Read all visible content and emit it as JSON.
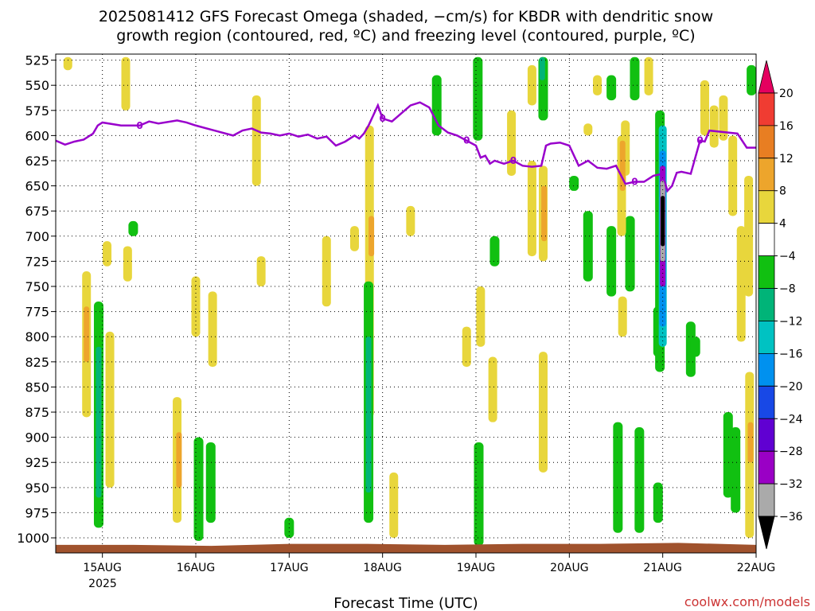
{
  "chart_data": {
    "type": "heatmap",
    "title": "2025081412 GFS Forecast Omega (shaded, −cm/s) for KBDR with dendritic snow growth region (contoured, red, ºC) and freezing level (contoured, purple, ºC)",
    "title_lines": [
      "2025081412 GFS Forecast Omega (shaded, −cm/s) for KBDR with dendritic snow",
      "growth region (contoured, red, ºC) and freezing level (contoured, purple, ºC)"
    ],
    "xlabel": "Forecast Time (UTC)",
    "credit": "coolwx.com/models",
    "x_ticks": [
      "15AUG",
      "16AUG",
      "17AUG",
      "18AUG",
      "19AUG",
      "20AUG",
      "21AUG",
      "22AUG"
    ],
    "x_tick_positions_day": [
      0,
      1,
      2,
      3,
      4,
      5,
      6,
      7
    ],
    "x_year_label": "2025",
    "xlim_day": [
      -0.5,
      7.0
    ],
    "y_ticks": [
      525,
      550,
      575,
      600,
      625,
      650,
      675,
      700,
      725,
      750,
      775,
      800,
      825,
      850,
      875,
      900,
      925,
      950,
      975,
      1000
    ],
    "y_tick_labels": [
      "525",
      "550",
      "575",
      "600",
      "625",
      "650",
      "675",
      "700",
      "725",
      "750",
      "775",
      "800",
      "825",
      "850",
      "875",
      "900",
      "925",
      "950",
      "975",
      "1000"
    ],
    "ylim_hpa": [
      519,
      1015
    ],
    "y_reversed": true,
    "grid": true,
    "colorbar": {
      "labels": [
        "20",
        "16",
        "12",
        "8",
        "4",
        "−4",
        "−8",
        "−12",
        "−16",
        "−20",
        "−24",
        "−28",
        "−32",
        "−36"
      ],
      "levels": [
        20,
        16,
        12,
        8,
        4,
        -4,
        -8,
        -12,
        -16,
        -20,
        -24,
        -28,
        -32,
        -36
      ],
      "colors": [
        "#e5005f",
        "#f03c32",
        "#e87e22",
        "#eda52c",
        "#e8d63c",
        "#ffffff",
        "#11c011",
        "#00b478",
        "#00c2c2",
        "#0091ef",
        "#1848e6",
        "#6000d2",
        "#9a00c5",
        "#aaaaaa",
        "#000000"
      ]
    },
    "colors": {
      "yellow": "#e8d63c",
      "orange": "#eda52c",
      "darkorange": "#e87e22",
      "green": "#11c011",
      "teal": "#00b478",
      "cyan": "#00c2c2",
      "blue": "#0091ef",
      "violet": "#6000d2",
      "purple": "#9a00c5",
      "gray": "#aaaaaa",
      "black": "#000000",
      "freezing_line": "#9900cc",
      "ground": "#a0522d"
    },
    "shaded_regions": [
      {
        "color": "yellow",
        "day": -0.37,
        "top": 522,
        "bottom": 535
      },
      {
        "color": "yellow",
        "day": 0.25,
        "top": 522,
        "bottom": 575
      },
      {
        "color": "yellow",
        "day": 0.27,
        "top": 710,
        "bottom": 745
      },
      {
        "color": "yellow",
        "day": -0.17,
        "top": 735,
        "bottom": 880
      },
      {
        "color": "orange",
        "day": -0.17,
        "top": 770,
        "bottom": 825
      },
      {
        "color": "yellow",
        "day": 0.08,
        "top": 795,
        "bottom": 950
      },
      {
        "color": "green",
        "day": -0.04,
        "top": 765,
        "bottom": 990
      },
      {
        "color": "teal",
        "day": -0.04,
        "top": 810,
        "bottom": 960
      },
      {
        "color": "green",
        "day": 0.33,
        "top": 685,
        "bottom": 700
      },
      {
        "color": "yellow",
        "day": 0.8,
        "top": 860,
        "bottom": 985
      },
      {
        "color": "orange",
        "day": 0.82,
        "top": 895,
        "bottom": 950
      },
      {
        "color": "green",
        "day": 1.03,
        "top": 900,
        "bottom": 1003
      },
      {
        "color": "green",
        "day": 1.16,
        "top": 905,
        "bottom": 985
      },
      {
        "color": "yellow",
        "day": 1.0,
        "top": 740,
        "bottom": 800
      },
      {
        "color": "yellow",
        "day": 1.18,
        "top": 755,
        "bottom": 830
      },
      {
        "color": "yellow",
        "day": 1.65,
        "top": 560,
        "bottom": 650
      },
      {
        "color": "yellow",
        "day": 2.7,
        "top": 690,
        "bottom": 715
      },
      {
        "color": "yellow",
        "day": 2.86,
        "top": 590,
        "bottom": 880
      },
      {
        "color": "orange",
        "day": 2.88,
        "top": 680,
        "bottom": 720
      },
      {
        "color": "green",
        "day": 2.85,
        "top": 745,
        "bottom": 985
      },
      {
        "color": "teal",
        "day": 2.85,
        "top": 800,
        "bottom": 955
      },
      {
        "color": "yellow",
        "day": 3.12,
        "top": 935,
        "bottom": 1000
      },
      {
        "color": "green",
        "day": 2.0,
        "top": 980,
        "bottom": 1000
      },
      {
        "color": "green",
        "day": 3.58,
        "top": 540,
        "bottom": 600
      },
      {
        "color": "green",
        "day": 4.02,
        "top": 522,
        "bottom": 605
      },
      {
        "color": "yellow",
        "day": 4.05,
        "top": 750,
        "bottom": 810
      },
      {
        "color": "yellow",
        "day": 3.9,
        "top": 790,
        "bottom": 830
      },
      {
        "color": "green",
        "day": 4.03,
        "top": 905,
        "bottom": 1008
      },
      {
        "color": "yellow",
        "day": 4.38,
        "top": 575,
        "bottom": 640
      },
      {
        "color": "yellow",
        "day": 4.6,
        "top": 625,
        "bottom": 720
      },
      {
        "color": "yellow",
        "day": 4.72,
        "top": 630,
        "bottom": 725
      },
      {
        "color": "orange",
        "day": 4.73,
        "top": 650,
        "bottom": 705
      },
      {
        "color": "yellow",
        "day": 4.72,
        "top": 815,
        "bottom": 935
      },
      {
        "color": "green",
        "day": 4.72,
        "top": 522,
        "bottom": 585
      },
      {
        "color": "teal",
        "day": 4.71,
        "top": 522,
        "bottom": 545
      },
      {
        "color": "yellow",
        "day": 4.6,
        "top": 530,
        "bottom": 570
      },
      {
        "color": "yellow",
        "day": 5.3,
        "top": 540,
        "bottom": 560
      },
      {
        "color": "green",
        "day": 5.05,
        "top": 640,
        "bottom": 655
      },
      {
        "color": "green",
        "day": 5.2,
        "top": 675,
        "bottom": 745
      },
      {
        "color": "green",
        "day": 5.45,
        "top": 690,
        "bottom": 760
      },
      {
        "color": "green",
        "day": 5.65,
        "top": 680,
        "bottom": 755
      },
      {
        "color": "green",
        "day": 5.7,
        "top": 522,
        "bottom": 565
      },
      {
        "color": "green",
        "day": 5.45,
        "top": 540,
        "bottom": 565
      },
      {
        "color": "yellow",
        "day": 5.6,
        "top": 585,
        "bottom": 640
      },
      {
        "color": "yellow",
        "day": 5.56,
        "top": 600,
        "bottom": 700
      },
      {
        "color": "orange",
        "day": 5.57,
        "top": 605,
        "bottom": 655
      },
      {
        "color": "yellow",
        "day": 5.57,
        "top": 760,
        "bottom": 800
      },
      {
        "color": "green",
        "day": 5.95,
        "top": 770,
        "bottom": 820
      },
      {
        "color": "yellow",
        "day": 5.85,
        "top": 522,
        "bottom": 560
      },
      {
        "color": "yellow",
        "day": 5.2,
        "top": 588,
        "bottom": 600
      },
      {
        "color": "green",
        "day": 5.97,
        "top": 575,
        "bottom": 835
      },
      {
        "color": "cyan",
        "day": 6.0,
        "top": 590,
        "bottom": 810
      },
      {
        "color": "blue",
        "day": 6.0,
        "top": 615,
        "bottom": 790
      },
      {
        "color": "purple",
        "day": 6.0,
        "top": 630,
        "bottom": 750
      },
      {
        "color": "gray",
        "day": 6.0,
        "top": 645,
        "bottom": 725
      },
      {
        "color": "black",
        "day": 6.0,
        "top": 660,
        "bottom": 710
      },
      {
        "color": "green",
        "day": 6.3,
        "top": 785,
        "bottom": 840
      },
      {
        "color": "green",
        "day": 6.35,
        "top": 800,
        "bottom": 820
      },
      {
        "color": "yellow",
        "day": 6.45,
        "top": 545,
        "bottom": 600
      },
      {
        "color": "yellow",
        "day": 6.55,
        "top": 570,
        "bottom": 612
      },
      {
        "color": "yellow",
        "day": 6.65,
        "top": 560,
        "bottom": 605
      },
      {
        "color": "green",
        "day": 6.95,
        "top": 530,
        "bottom": 560
      },
      {
        "color": "yellow",
        "day": 6.75,
        "top": 600,
        "bottom": 680
      },
      {
        "color": "yellow",
        "day": 6.84,
        "top": 690,
        "bottom": 805
      },
      {
        "color": "yellow",
        "day": 6.92,
        "top": 640,
        "bottom": 760
      },
      {
        "color": "green",
        "day": 6.7,
        "top": 875,
        "bottom": 960
      },
      {
        "color": "green",
        "day": 6.78,
        "top": 890,
        "bottom": 975
      },
      {
        "color": "yellow",
        "day": 6.93,
        "top": 835,
        "bottom": 1000
      },
      {
        "color": "orange",
        "day": 6.94,
        "top": 885,
        "bottom": 925
      },
      {
        "color": "green",
        "day": 5.52,
        "top": 885,
        "bottom": 995
      },
      {
        "color": "green",
        "day": 5.75,
        "top": 890,
        "bottom": 995
      },
      {
        "color": "green",
        "day": 5.95,
        "top": 945,
        "bottom": 985
      },
      {
        "color": "yellow",
        "day": 0.05,
        "top": 705,
        "bottom": 730
      },
      {
        "color": "yellow",
        "day": 2.4,
        "top": 700,
        "bottom": 770
      },
      {
        "color": "yellow",
        "day": 1.7,
        "top": 720,
        "bottom": 750
      },
      {
        "color": "yellow",
        "day": 3.3,
        "top": 670,
        "bottom": 700
      },
      {
        "color": "yellow",
        "day": 4.18,
        "top": 820,
        "bottom": 885
      },
      {
        "color": "green",
        "day": 4.2,
        "top": 700,
        "bottom": 730
      }
    ],
    "freezing_level": {
      "label": "0",
      "day": [
        -0.5,
        -0.4,
        -0.3,
        -0.2,
        -0.1,
        -0.05,
        0.0,
        0.2,
        0.4,
        0.5,
        0.6,
        0.8,
        0.9,
        1.0,
        1.2,
        1.4,
        1.5,
        1.6,
        1.7,
        1.8,
        1.9,
        2.0,
        2.1,
        2.2,
        2.3,
        2.4,
        2.5,
        2.6,
        2.7,
        2.75,
        2.8,
        2.85,
        2.9,
        2.95,
        3.0,
        3.1,
        3.2,
        3.3,
        3.4,
        3.5,
        3.6,
        3.7,
        3.8,
        3.9,
        4.0,
        4.05,
        4.1,
        4.15,
        4.2,
        4.3,
        4.4,
        4.5,
        4.6,
        4.7,
        4.75,
        4.8,
        4.9,
        5.0,
        5.1,
        5.2,
        5.3,
        5.4,
        5.5,
        5.6,
        5.7,
        5.8,
        5.9,
        6.0,
        6.05,
        6.1,
        6.15,
        6.2,
        6.3,
        6.4,
        6.45,
        6.5,
        6.6,
        6.7,
        6.8,
        6.9,
        7.0
      ],
      "hpa": [
        605,
        609,
        606,
        604,
        598,
        590,
        587,
        590,
        590,
        586,
        588,
        585,
        587,
        590,
        595,
        600,
        595,
        593,
        597,
        598,
        600,
        598,
        601,
        599,
        603,
        601,
        610,
        606,
        600,
        603,
        598,
        590,
        580,
        570,
        583,
        586,
        578,
        570,
        567,
        572,
        590,
        597,
        600,
        605,
        610,
        622,
        620,
        628,
        625,
        628,
        625,
        630,
        631,
        630,
        610,
        608,
        607,
        610,
        630,
        625,
        632,
        633,
        630,
        648,
        646,
        646,
        640,
        638,
        655,
        650,
        637,
        636,
        638,
        605,
        606,
        595,
        596,
        597,
        598,
        612,
        612
      ]
    },
    "ground": {
      "hpa_top": [
        1007,
        1007,
        1008,
        1006,
        1006,
        1007,
        1006,
        1006,
        1005,
        1007
      ]
    }
  }
}
